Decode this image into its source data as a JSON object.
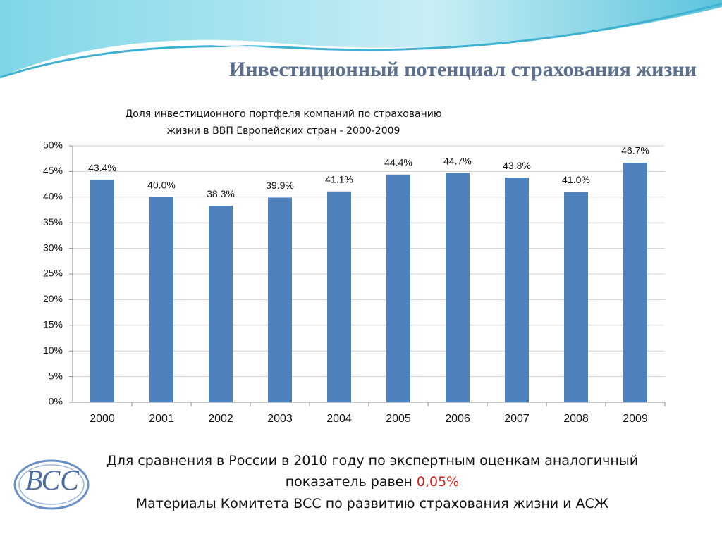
{
  "slide_title": "Инвестиционный потенциал страхования жизни",
  "chart_data": {
    "type": "bar",
    "title": "Доля инвестиционного портфеля компаний по страхованию жизни в ВВП Европейских стран - 2000-2009",
    "categories": [
      "2000",
      "2001",
      "2002",
      "2003",
      "2004",
      "2005",
      "2006",
      "2007",
      "2008",
      "2009"
    ],
    "values": [
      43.4,
      40.0,
      38.3,
      39.9,
      41.1,
      44.4,
      44.7,
      43.8,
      41.0,
      46.7
    ],
    "value_labels": [
      "43.4%",
      "40.0%",
      "38.3%",
      "39.9%",
      "41.1%",
      "44.4%",
      "44.7%",
      "43.8%",
      "41.0%",
      "46.7%"
    ],
    "color": "#4f81bd",
    "ylim": [
      0,
      50
    ],
    "yticks": [
      {
        "value": 0,
        "label": "0%"
      },
      {
        "value": 5,
        "label": "5%"
      },
      {
        "value": 10,
        "label": "10%"
      },
      {
        "value": 15,
        "label": "15%"
      },
      {
        "value": 20,
        "label": "20%"
      },
      {
        "value": 25,
        "label": "25%"
      },
      {
        "value": 30,
        "label": "30%"
      },
      {
        "value": 35,
        "label": "35%"
      },
      {
        "value": 40,
        "label": "40%"
      },
      {
        "value": 45,
        "label": "45%"
      },
      {
        "value": 50,
        "label": "50%"
      }
    ],
    "grid": true
  },
  "comparison": {
    "line1": "Для сравнения в России в 2010 году по экспертным оценкам аналогичный",
    "line2": "показатель равен",
    "value": "0,05%"
  },
  "source": "Материалы Комитета ВСС по развитию страхования жизни и АСЖ",
  "logo": "ВСС"
}
